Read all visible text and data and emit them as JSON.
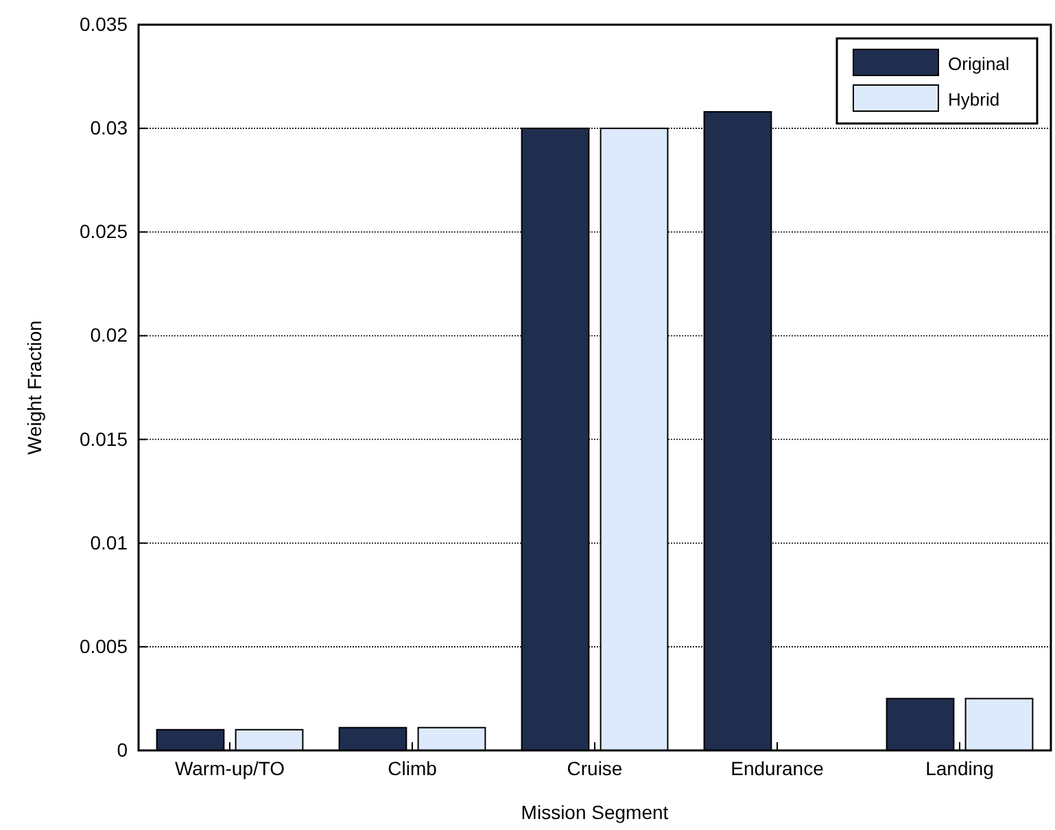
{
  "chart_data": {
    "type": "bar",
    "xlabel": "Mission Segment",
    "ylabel": "Weight Fraction",
    "categories": [
      "Warm-up/TO",
      "Climb",
      "Cruise",
      "Endurance",
      "Landing"
    ],
    "series": [
      {
        "name": "Original",
        "color": "#1f2d4f",
        "values": [
          0.001,
          0.0011,
          0.03,
          0.0308,
          0.0025
        ]
      },
      {
        "name": "Hybrid",
        "color": "#ddeafc",
        "values": [
          0.001,
          0.0011,
          0.03,
          0,
          0.0025
        ]
      }
    ],
    "ylim": [
      0,
      0.035
    ],
    "yticks": [
      0,
      0.005,
      0.01,
      0.015,
      0.02,
      0.025,
      0.03,
      0.035
    ],
    "grid": "y",
    "legend": "top right"
  }
}
